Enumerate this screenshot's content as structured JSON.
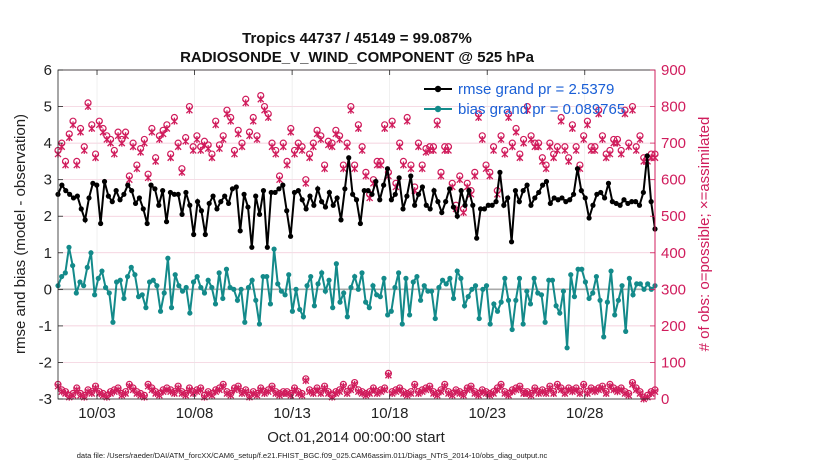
{
  "chart_data": {
    "type": "line",
    "title_line1": "Tropics 44737 / 45149 = 99.087%",
    "title_line2": "RADIOSONDE_V_WIND_COMPONENT @ 525 hPa",
    "xlabel": "Oct.01,2014 00:00:00 start",
    "ylabel_left": "rmse and bias (model - observation)",
    "ylabel_right": "# of obs: o=possible; ×=assimilated",
    "footer": "data file: /Users/raeder/DAI/ATM_forcXX/CAM6_setup/f.e21.FHIST_BGC.f09_025.CAM6assim.011/Diags_NTrS_2014-10/obs_diag_output.nc",
    "xlim": [
      1,
      31.6
    ],
    "ylim_left": [
      -3,
      6
    ],
    "ylim_right": [
      0,
      900
    ],
    "x_ticks": [
      3,
      8,
      13,
      18,
      23,
      28
    ],
    "x_tick_labels": [
      "10/03",
      "10/08",
      "10/13",
      "10/18",
      "10/23",
      "10/28"
    ],
    "y_ticks_left": [
      -3,
      -2,
      -1,
      0,
      1,
      2,
      3,
      4,
      5,
      6
    ],
    "y_ticks_right": [
      0,
      100,
      200,
      300,
      400,
      500,
      600,
      700,
      800,
      900
    ],
    "legend": {
      "rmse_label": "rmse grand pr = 2.5379",
      "bias_label": "bias grand pr = 0.089765",
      "location": "top-right"
    },
    "colors": {
      "rmse": "#000000",
      "bias": "#138a8a",
      "obs": "#d01c5c",
      "zero_line": "#aaaaaa",
      "grid": "#f2c6d6"
    },
    "series": [
      {
        "name": "rmse",
        "values": [
          2.6,
          2.85,
          2.7,
          2.6,
          2.5,
          2.55,
          2.2,
          1.9,
          2.5,
          2.9,
          2.85,
          1.8,
          2.95,
          2.55,
          2.4,
          2.7,
          2.45,
          2.6,
          2.85,
          2.7,
          2.35,
          2.5,
          2.2,
          1.8,
          2.85,
          2.75,
          2.3,
          2.7,
          1.85,
          2.65,
          2.6,
          2.6,
          2.05,
          2.65,
          2.3,
          1.5,
          2.4,
          2.15,
          1.5,
          2.35,
          2.55,
          2.2,
          2.4,
          2.55,
          2.35,
          2.75,
          2.8,
          1.6,
          2.6,
          2.25,
          1.15,
          2.55,
          2.05,
          2.7,
          1.15,
          2.65,
          2.65,
          2.75,
          2.85,
          2.15,
          1.45,
          2.65,
          2.7,
          2.45,
          2.2,
          2.55,
          2.3,
          2.75,
          2.4,
          2.25,
          2.65,
          2.3,
          2.5,
          1.9,
          2.75,
          3.6,
          2.6,
          2.45,
          1.8,
          2.7,
          2.7,
          2.6,
          2.95,
          2.45,
          2.85,
          3.3,
          2.45,
          2.6,
          3.05,
          2.2,
          2.55,
          3.1,
          2.3,
          2.6,
          2.8,
          2.3,
          2.2,
          2.7,
          2.4,
          2.1,
          2.4,
          2.75,
          2.25,
          2.0,
          2.7,
          2.3,
          2.7,
          2.3,
          1.4,
          2.2,
          2.2,
          2.3,
          2.3,
          2.4,
          3.2,
          2.3,
          2.5,
          1.3,
          2.7,
          2.4,
          2.7,
          2.85,
          2.3,
          2.5,
          2.65,
          2.85,
          2.95,
          2.35,
          2.5,
          2.45,
          2.5,
          2.4,
          2.45,
          2.6,
          3.3,
          2.7,
          2.5,
          1.95,
          2.3,
          2.6,
          2.65,
          2.5,
          2.9,
          2.4,
          2.35,
          2.3,
          2.45,
          2.35,
          2.4,
          2.4,
          2.3,
          2.65,
          3.65,
          2.4,
          1.65
        ]
      },
      {
        "name": "bias",
        "values": [
          0.1,
          0.35,
          0.45,
          1.15,
          0.65,
          -0.1,
          0.2,
          0.1,
          0.6,
          1.0,
          -0.15,
          0.3,
          0.5,
          0.05,
          -0.1,
          -0.9,
          0.2,
          0.25,
          -0.25,
          0.35,
          0.6,
          0.4,
          -0.2,
          -0.15,
          -0.5,
          0.2,
          0.25,
          0.1,
          -0.6,
          -0.1,
          0.85,
          -0.5,
          0.4,
          0.1,
          -0.05,
          0.05,
          -0.65,
          0.2,
          0.35,
          0.05,
          -0.1,
          0.25,
          0.05,
          -0.4,
          0.45,
          -0.25,
          0.55,
          0.05,
          0.0,
          -0.3,
          0.0,
          -0.9,
          0.05,
          0.25,
          -0.3,
          -0.95,
          0.35,
          0.35,
          -0.4,
          1.1,
          0.15,
          -0.05,
          -0.15,
          0.4,
          -0.6,
          0.0,
          -0.55,
          -0.75,
          0.1,
          0.35,
          -0.45,
          0.15,
          0.45,
          -0.05,
          0.25,
          -0.5,
          0.7,
          -0.35,
          -0.1,
          -0.75,
          0.05,
          0.35,
          0.0,
          0.45,
          -0.35,
          -0.5,
          0.1,
          -0.15,
          -0.2,
          0.3,
          -0.7,
          -0.6,
          0.05,
          0.45,
          -0.95,
          0.3,
          -0.7,
          0.2,
          0.35,
          -0.3,
          0.1,
          -0.05,
          -0.05,
          -0.8,
          0.05,
          0.25,
          0.15,
          0.3,
          -0.25,
          0.5,
          0.3,
          -0.45,
          -0.2,
          0.0,
          0.1,
          -0.8,
          0.0,
          0.1,
          -0.95,
          -0.4,
          -0.6,
          -0.35,
          0.3,
          -0.3,
          -1.1,
          -0.3,
          0.3,
          -0.95,
          -0.05,
          -0.4,
          0.3,
          -0.1,
          -0.15,
          -0.9,
          0.25,
          0.25,
          -0.45,
          -0.65,
          -0.05,
          -1.6,
          0.4,
          -0.2,
          0.55,
          0.55,
          0.2,
          -0.25,
          -0.1,
          0.35,
          -0.3,
          -1.3,
          -0.35,
          0.5,
          -0.7,
          -0.3,
          0.1,
          -1.15,
          0.3,
          -0.15,
          0.15,
          0.15,
          0.0,
          0.15,
          0.0,
          0.1
        ]
      },
      {
        "name": "obs_possible",
        "values": [
          680,
          700,
          650,
          725,
          760,
          650,
          740,
          690,
          810,
          750,
          670,
          760,
          740,
          720,
          710,
          680,
          730,
          710,
          730,
          610,
          700,
          640,
          685,
          710,
          615,
          740,
          660,
          720,
          735,
          750,
          670,
          770,
          700,
          630,
          715,
          800,
          690,
          720,
          690,
          705,
          695,
          670,
          760,
          695,
          720,
          790,
          770,
          680,
          735,
          700,
          820,
          730,
          770,
          720,
          830,
          800,
          780,
          700,
          680,
          610,
          700,
          650,
          740,
          680,
          700,
          690,
          600,
          670,
          700,
          735,
          720,
          640,
          705,
          700,
          735,
          720,
          640,
          700,
          800,
          640,
          750,
          690,
          620,
          560,
          600,
          650,
          650,
          750,
          620,
          760,
          590,
          700,
          650,
          770,
          640,
          580,
          700,
          640,
          685,
          690,
          690,
          760,
          620,
          690,
          690,
          590,
          530,
          610,
          520,
          590,
          570,
          620,
          780,
          720,
          640,
          620,
          690,
          570,
          720,
          680,
          780,
          700,
          740,
          670,
          710,
          800,
          720,
          700,
          700,
          660,
          640,
          700,
          670,
          690,
          770,
          690,
          660,
          750,
          690,
          640,
          720,
          760,
          690,
          690,
          790,
          720,
          670,
          680,
          710,
          710,
          680,
          790,
          700,
          800,
          690,
          720,
          660,
          660,
          670,
          670
        ]
      },
      {
        "name": "obs_assimilated",
        "values": [
          670,
          690,
          640,
          715,
          750,
          640,
          730,
          680,
          800,
          740,
          660,
          750,
          730,
          710,
          700,
          670,
          720,
          700,
          720,
          600,
          690,
          630,
          675,
          700,
          605,
          730,
          650,
          710,
          725,
          740,
          660,
          760,
          690,
          620,
          705,
          790,
          680,
          710,
          680,
          695,
          685,
          660,
          750,
          685,
          710,
          780,
          760,
          670,
          725,
          690,
          810,
          720,
          760,
          710,
          820,
          790,
          770,
          690,
          670,
          600,
          690,
          640,
          730,
          670,
          690,
          680,
          590,
          660,
          690,
          725,
          710,
          630,
          695,
          690,
          725,
          710,
          630,
          690,
          790,
          630,
          740,
          680,
          610,
          550,
          590,
          640,
          640,
          740,
          610,
          750,
          580,
          690,
          640,
          760,
          630,
          570,
          690,
          630,
          675,
          680,
          680,
          750,
          610,
          680,
          680,
          580,
          520,
          600,
          510,
          580,
          560,
          610,
          770,
          710,
          630,
          610,
          680,
          560,
          710,
          670,
          770,
          690,
          730,
          660,
          700,
          790,
          710,
          690,
          690,
          650,
          630,
          690,
          660,
          680,
          760,
          680,
          650,
          740,
          680,
          630,
          710,
          750,
          680,
          680,
          780,
          710,
          660,
          670,
          700,
          700,
          670,
          780,
          690,
          790,
          680,
          710,
          650,
          650,
          660,
          660
        ]
      },
      {
        "name": "obs_bottom_possible",
        "values": [
          40,
          25,
          20,
          10,
          15,
          30,
          15,
          10,
          25,
          20,
          35,
          20,
          15,
          10,
          20,
          25,
          30,
          15,
          20,
          40,
          30,
          20,
          15,
          10,
          40,
          30,
          20,
          15,
          25,
          30,
          25,
          20,
          35,
          20,
          15,
          30,
          20,
          25,
          30,
          10,
          20,
          15,
          25,
          30,
          40,
          20,
          15,
          30,
          35,
          20,
          25,
          10,
          20,
          15,
          30,
          20,
          25,
          35,
          20,
          15,
          20,
          20,
          15,
          30,
          20,
          15,
          55,
          25,
          20,
          30,
          20,
          35,
          20,
          10,
          20,
          25,
          40,
          20,
          30,
          45,
          25,
          20,
          15,
          20,
          30,
          20,
          25,
          30,
          70,
          20,
          25,
          30,
          20,
          15,
          20,
          40,
          20,
          25,
          30,
          35,
          20,
          15,
          25,
          40,
          20,
          15,
          25,
          20,
          15,
          30,
          35,
          20,
          15,
          25,
          20,
          15,
          20,
          30,
          40,
          20,
          15,
          25,
          30,
          35,
          20,
          20,
          15,
          30,
          20,
          25,
          20,
          35,
          20,
          40,
          30,
          20,
          30,
          25,
          30,
          20,
          40,
          20,
          30,
          25,
          30,
          35,
          20,
          40,
          30,
          25,
          30,
          20,
          15,
          45,
          30,
          20,
          5,
          10,
          20,
          25
        ]
      },
      {
        "name": "obs_bottom_assimilated",
        "values": [
          35,
          20,
          15,
          5,
          10,
          25,
          10,
          5,
          20,
          15,
          30,
          15,
          10,
          5,
          15,
          20,
          25,
          10,
          15,
          35,
          25,
          15,
          10,
          5,
          35,
          25,
          15,
          10,
          20,
          25,
          20,
          15,
          30,
          15,
          10,
          25,
          15,
          20,
          25,
          5,
          15,
          10,
          20,
          25,
          35,
          15,
          10,
          25,
          30,
          15,
          20,
          5,
          15,
          10,
          25,
          15,
          20,
          30,
          15,
          10,
          15,
          15,
          10,
          25,
          15,
          10,
          50,
          20,
          15,
          25,
          15,
          30,
          15,
          5,
          15,
          20,
          35,
          15,
          25,
          40,
          20,
          15,
          10,
          15,
          25,
          15,
          20,
          25,
          65,
          15,
          20,
          25,
          15,
          10,
          15,
          35,
          15,
          20,
          25,
          30,
          15,
          10,
          20,
          35,
          15,
          10,
          20,
          15,
          10,
          25,
          30,
          15,
          10,
          20,
          15,
          10,
          15,
          25,
          35,
          15,
          10,
          20,
          25,
          30,
          15,
          15,
          10,
          25,
          15,
          20,
          15,
          30,
          15,
          35,
          25,
          15,
          25,
          20,
          25,
          15,
          35,
          15,
          25,
          20,
          25,
          30,
          15,
          35,
          25,
          20,
          25,
          15,
          10,
          40,
          25,
          15,
          0,
          5,
          15,
          20
        ]
      }
    ]
  }
}
